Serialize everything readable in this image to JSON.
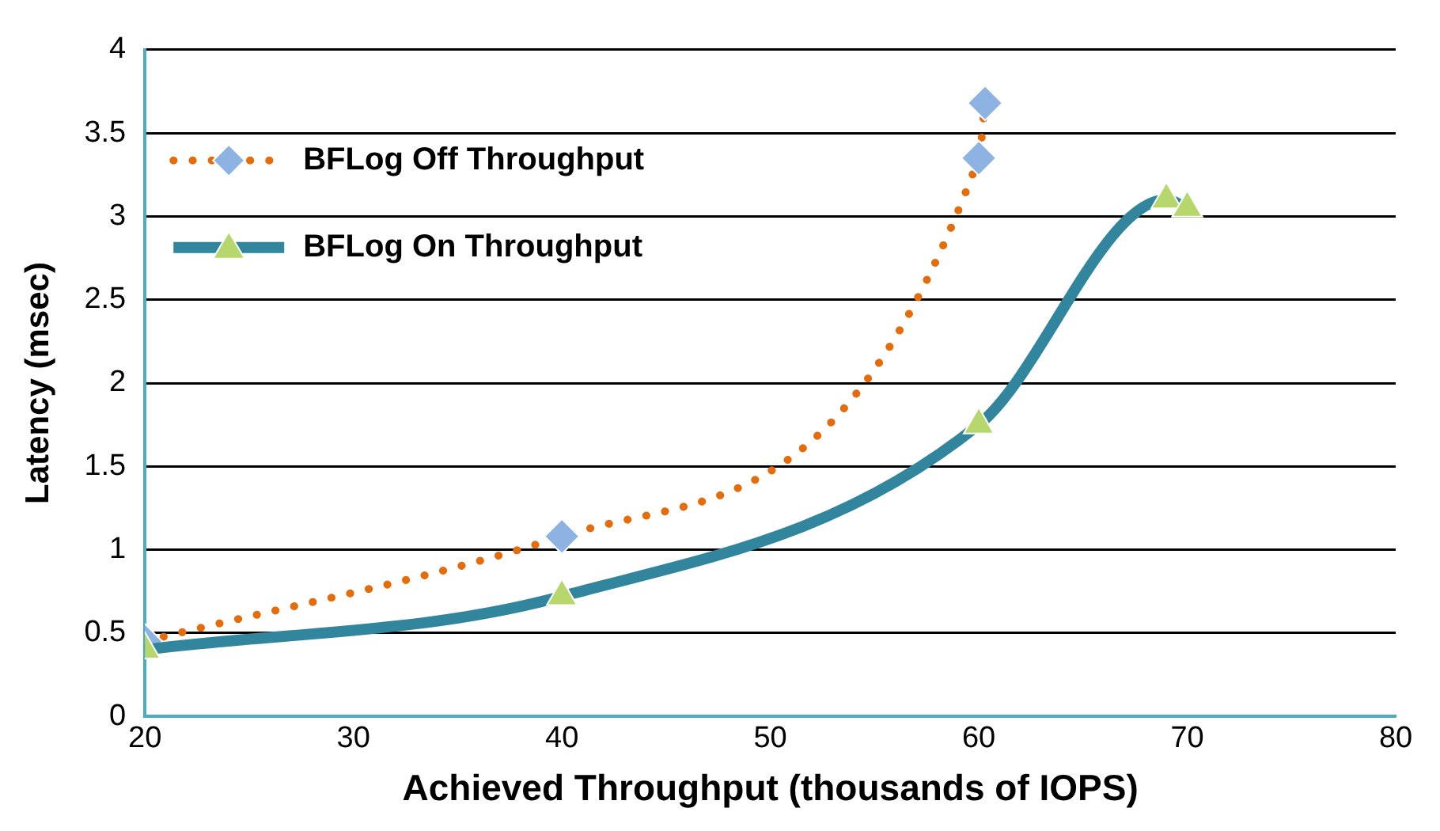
{
  "chart_data": {
    "type": "line",
    "xlabel": "Achieved Throughput (thousands of IOPS)",
    "ylabel": "Latency (msec)",
    "xlim": [
      20,
      80
    ],
    "xticks": [
      20,
      30,
      40,
      50,
      60,
      70,
      80
    ],
    "ylim": [
      0,
      4
    ],
    "yticks": [
      0,
      0.5,
      1,
      1.5,
      2,
      2.5,
      3,
      3.5,
      4
    ],
    "grid": "y",
    "legend": "top left",
    "series": [
      {
        "name": "BFLog Off Throughput",
        "color": "#e46c0a",
        "colors": [
          "#8db3e2",
          "#8db3e2",
          "#8db3e2",
          "#8db3e2"
        ],
        "marker": "diamond",
        "line_style": "dotted",
        "x": [
          20,
          40,
          60,
          60.3
        ],
        "values": [
          0.45,
          1.08,
          3.35,
          3.68
        ]
      },
      {
        "name": "BFLog On Throughput",
        "color": "#31859c",
        "colors": [
          "#b6d76b",
          "#b6d76b",
          "#b6d76b",
          "#b6d76b",
          "#b6d76b"
        ],
        "marker": "triangle",
        "line_style": "solid",
        "x": [
          20,
          40,
          60,
          69,
          70
        ],
        "values": [
          0.4,
          0.72,
          1.75,
          3.1,
          3.05
        ]
      }
    ]
  }
}
